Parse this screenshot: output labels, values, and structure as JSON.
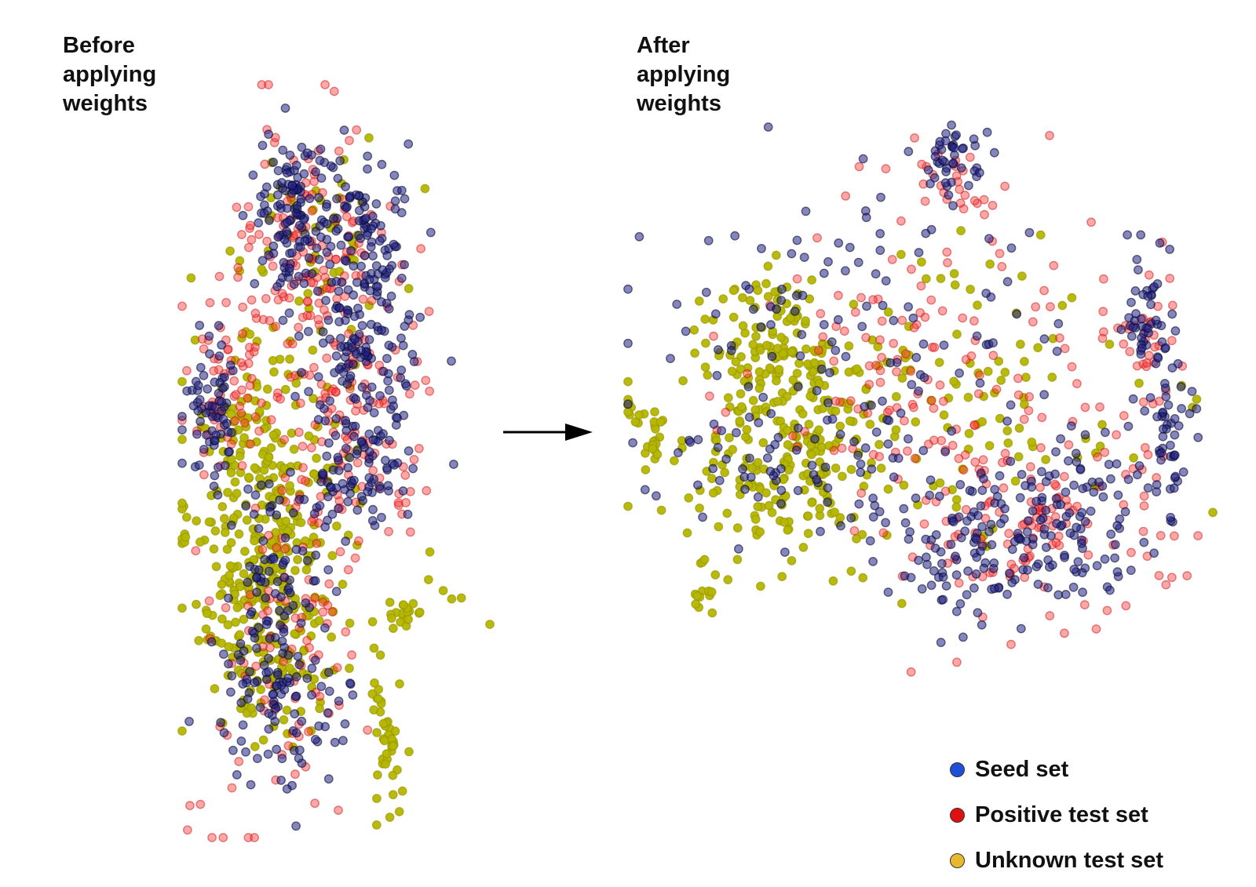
{
  "panels": {
    "before": {
      "title": "Before\napplying\nweights"
    },
    "after": {
      "title": "After\napplying\nweights"
    }
  },
  "legend": [
    {
      "label": "Seed set",
      "color": "#1f4fd6"
    },
    {
      "label": "Positive test set",
      "color": "#e01010"
    },
    {
      "label": "Unknown test set",
      "color": "#e8b92e"
    }
  ],
  "colors": {
    "seed_point": "#22228a",
    "positive_point": "#ff3a3a",
    "unknown_point": "#b5b600",
    "arrow": "#000000"
  },
  "chart_data": [
    {
      "type": "scatter",
      "title": "Before applying weights",
      "axes": "hidden",
      "grid": false,
      "series": [
        {
          "name": "Seed set",
          "color": "#1f4fd6",
          "clusters": [
            {
              "cx": 0.36,
              "cy": 0.17,
              "sx": 0.06,
              "sy": 0.06,
              "n": 120
            },
            {
              "cx": 0.59,
              "cy": 0.2,
              "sx": 0.08,
              "sy": 0.05,
              "n": 110
            },
            {
              "cx": 0.59,
              "cy": 0.35,
              "sx": 0.08,
              "sy": 0.05,
              "n": 110
            },
            {
              "cx": 0.1,
              "cy": 0.42,
              "sx": 0.05,
              "sy": 0.05,
              "n": 70
            },
            {
              "cx": 0.56,
              "cy": 0.5,
              "sx": 0.09,
              "sy": 0.05,
              "n": 90
            },
            {
              "cx": 0.32,
              "cy": 0.65,
              "sx": 0.1,
              "sy": 0.06,
              "n": 80
            },
            {
              "cx": 0.33,
              "cy": 0.83,
              "sx": 0.1,
              "sy": 0.06,
              "n": 100
            }
          ]
        },
        {
          "name": "Positive test set",
          "color": "#e01010",
          "clusters": [
            {
              "cx": 0.4,
              "cy": 0.22,
              "sx": 0.12,
              "sy": 0.09,
              "n": 120
            },
            {
              "cx": 0.55,
              "cy": 0.42,
              "sx": 0.12,
              "sy": 0.1,
              "n": 130
            },
            {
              "cx": 0.15,
              "cy": 0.4,
              "sx": 0.08,
              "sy": 0.06,
              "n": 60
            },
            {
              "cx": 0.35,
              "cy": 0.75,
              "sx": 0.12,
              "sy": 0.12,
              "n": 90
            },
            {
              "cx": 0.15,
              "cy": 1.0,
              "sx": 0.08,
              "sy": 0.05,
              "n": 6
            }
          ]
        },
        {
          "name": "Unknown test set",
          "color": "#e8b92e",
          "clusters": [
            {
              "cx": 0.3,
              "cy": 0.62,
              "sx": 0.12,
              "sy": 0.08,
              "n": 220
            },
            {
              "cx": 0.25,
              "cy": 0.76,
              "sx": 0.1,
              "sy": 0.06,
              "n": 90
            },
            {
              "cx": 0.4,
              "cy": 0.25,
              "sx": 0.15,
              "sy": 0.1,
              "n": 70
            },
            {
              "cx": 0.2,
              "cy": 0.46,
              "sx": 0.1,
              "sy": 0.05,
              "n": 70
            },
            {
              "cx": 0.66,
              "cy": 0.87,
              "sx": 0.03,
              "sy": 0.05,
              "n": 45
            },
            {
              "cx": 0.72,
              "cy": 0.7,
              "sx": 0.02,
              "sy": 0.01,
              "n": 18
            },
            {
              "cx": 0.0,
              "cy": 0.58,
              "sx": 0.01,
              "sy": 0.02,
              "n": 8
            },
            {
              "cx": 0.9,
              "cy": 0.68,
              "sx": 0.08,
              "sy": 0.06,
              "n": 6
            }
          ]
        }
      ]
    },
    {
      "type": "scatter",
      "title": "After applying weights",
      "axes": "hidden",
      "grid": false,
      "series": [
        {
          "name": "Seed set",
          "color": "#1f4fd6",
          "clusters": [
            {
              "cx": 0.56,
              "cy": 0.08,
              "sx": 0.03,
              "sy": 0.03,
              "n": 45
            },
            {
              "cx": 0.88,
              "cy": 0.34,
              "sx": 0.02,
              "sy": 0.05,
              "n": 40
            },
            {
              "cx": 0.92,
              "cy": 0.52,
              "sx": 0.02,
              "sy": 0.09,
              "n": 60
            },
            {
              "cx": 0.73,
              "cy": 0.69,
              "sx": 0.08,
              "sy": 0.07,
              "n": 130
            },
            {
              "cx": 0.55,
              "cy": 0.75,
              "sx": 0.06,
              "sy": 0.06,
              "n": 80
            },
            {
              "cx": 0.4,
              "cy": 0.4,
              "sx": 0.18,
              "sy": 0.15,
              "n": 120
            },
            {
              "cx": 0.28,
              "cy": 0.6,
              "sx": 0.1,
              "sy": 0.06,
              "n": 60
            }
          ]
        },
        {
          "name": "Positive test set",
          "color": "#e01010",
          "clusters": [
            {
              "cx": 0.72,
              "cy": 0.7,
              "sx": 0.1,
              "sy": 0.08,
              "n": 110
            },
            {
              "cx": 0.5,
              "cy": 0.45,
              "sx": 0.15,
              "sy": 0.15,
              "n": 140
            },
            {
              "cx": 0.88,
              "cy": 0.4,
              "sx": 0.04,
              "sy": 0.08,
              "n": 40
            },
            {
              "cx": 0.55,
              "cy": 0.1,
              "sx": 0.04,
              "sy": 0.04,
              "n": 25
            }
          ]
        },
        {
          "name": "Unknown test set",
          "color": "#e8b92e",
          "clusters": [
            {
              "cx": 0.27,
              "cy": 0.55,
              "sx": 0.09,
              "sy": 0.1,
              "n": 240
            },
            {
              "cx": 0.25,
              "cy": 0.38,
              "sx": 0.05,
              "sy": 0.05,
              "n": 70
            },
            {
              "cx": 0.5,
              "cy": 0.5,
              "sx": 0.18,
              "sy": 0.15,
              "n": 120
            },
            {
              "cx": 0.04,
              "cy": 0.55,
              "sx": 0.015,
              "sy": 0.025,
              "n": 22
            },
            {
              "cx": 0.0,
              "cy": 0.5,
              "sx": 0.005,
              "sy": 0.01,
              "n": 6
            },
            {
              "cx": 0.13,
              "cy": 0.8,
              "sx": 0.01,
              "sy": 0.04,
              "n": 14
            }
          ]
        }
      ]
    }
  ]
}
